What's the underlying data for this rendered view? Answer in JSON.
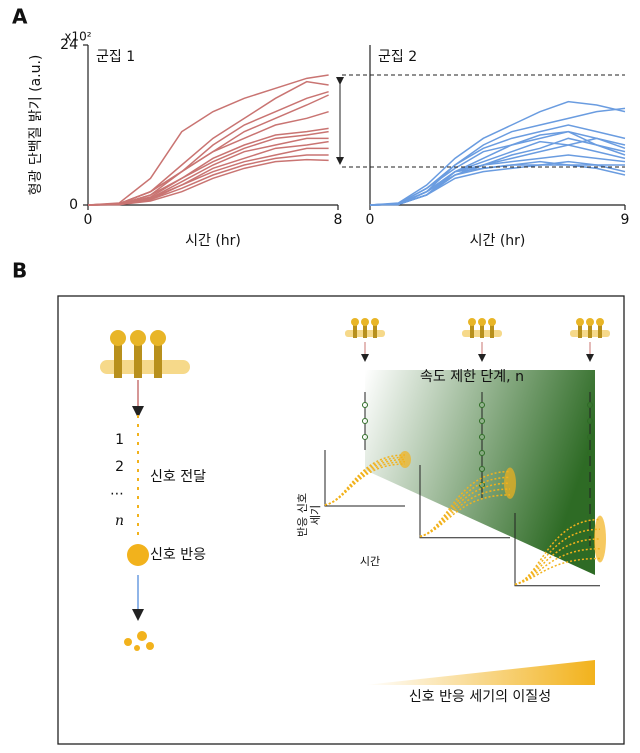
{
  "figure": {
    "panel_a_label": "A",
    "panel_b_label": "B"
  },
  "chart_data": [
    {
      "type": "line",
      "title": "군집 1",
      "x_label": "시간 (hr)",
      "y_label": "형광 단백질 밝기 (a.u.)",
      "y_unit": "x10²",
      "color": "#c97472",
      "xlim": [
        0,
        8
      ],
      "xticks": [
        0,
        8
      ],
      "ylim": [
        0,
        24
      ],
      "yticks": [
        0,
        24
      ],
      "x": [
        0,
        1,
        2,
        3,
        4,
        5,
        6,
        7,
        7.7
      ],
      "series": [
        {
          "values": [
            0,
            0.3,
            4,
            11,
            14,
            16,
            17.5,
            19,
            19.5
          ]
        },
        {
          "values": [
            0,
            0.2,
            2,
            6,
            10,
            13,
            16,
            18.5,
            18
          ]
        },
        {
          "values": [
            0,
            0.2,
            2,
            5,
            9,
            12,
            14,
            16,
            17
          ]
        },
        {
          "values": [
            0,
            0.1,
            1.5,
            5,
            8,
            11,
            13,
            15,
            16.5
          ]
        },
        {
          "values": [
            0,
            0.2,
            2,
            5,
            8,
            10,
            12,
            13,
            14
          ]
        },
        {
          "values": [
            0,
            0.1,
            1.5,
            4,
            7,
            9,
            10.5,
            11,
            11.5
          ]
        },
        {
          "values": [
            0,
            0.1,
            1.2,
            4,
            6.5,
            8.5,
            10,
            10.5,
            11
          ]
        },
        {
          "values": [
            0,
            0.1,
            1,
            3.5,
            6,
            8,
            9,
            10,
            10
          ]
        },
        {
          "values": [
            0,
            0.1,
            1,
            3,
            5.5,
            7,
            8.5,
            9,
            9.5
          ]
        },
        {
          "values": [
            0,
            0.1,
            0.8,
            3,
            5,
            6.5,
            7.5,
            8.5,
            8.5
          ]
        },
        {
          "values": [
            0,
            0.05,
            0.8,
            2.5,
            4.5,
            6,
            7,
            7.5,
            7.5
          ]
        },
        {
          "values": [
            0,
            0.05,
            0.6,
            2,
            4,
            5.5,
            6.5,
            6.8,
            6.7
          ]
        }
      ]
    },
    {
      "type": "line",
      "title": "군집 2",
      "x_label": "시간 (hr)",
      "color": "#6a9ce0",
      "xlim": [
        0,
        9
      ],
      "xticks": [
        0,
        9
      ],
      "ylim": [
        0,
        24
      ],
      "hlines": [
        19.5,
        5.7
      ],
      "x": [
        0,
        1,
        2,
        3,
        4,
        5,
        6,
        7,
        8,
        9
      ],
      "series": [
        {
          "values": [
            0,
            0.3,
            3,
            7,
            10,
            12,
            14,
            15.5,
            15,
            14
          ]
        },
        {
          "values": [
            0,
            0.2,
            2.5,
            6,
            9,
            11,
            12,
            13,
            14,
            14.5
          ]
        },
        {
          "values": [
            0,
            0.2,
            2,
            6,
            8.5,
            10,
            11,
            12,
            11,
            10
          ]
        },
        {
          "values": [
            0,
            0.2,
            2.5,
            5.5,
            8,
            9,
            10.5,
            11,
            10,
            9
          ]
        },
        {
          "values": [
            0,
            0.1,
            2,
            5,
            7,
            9,
            10,
            11,
            9,
            8
          ]
        },
        {
          "values": [
            0,
            0.1,
            2,
            5,
            6.5,
            8,
            9.5,
            9,
            10,
            8.5
          ]
        },
        {
          "values": [
            0,
            0.1,
            1.5,
            4.5,
            6,
            7.5,
            8.5,
            10,
            9,
            7.5
          ]
        },
        {
          "values": [
            0,
            0.1,
            1.5,
            4.5,
            6,
            7,
            8,
            9,
            8,
            7
          ]
        },
        {
          "values": [
            0,
            0.1,
            1.5,
            5,
            6,
            6.5,
            7,
            7.5,
            7,
            6.5
          ]
        },
        {
          "values": [
            0,
            0.1,
            1.5,
            5,
            5.5,
            6,
            6.5,
            6,
            6,
            6
          ]
        },
        {
          "values": [
            0,
            0.1,
            1.5,
            4,
            5,
            5.5,
            6,
            6.5,
            6,
            5
          ]
        },
        {
          "values": [
            0,
            0.1,
            2,
            4.5,
            5.5,
            6,
            6,
            6,
            5.5,
            4.5
          ]
        }
      ]
    }
  ],
  "diagram": {
    "pathway_steps": [
      "1",
      "2",
      "⋯",
      "n"
    ],
    "signal_transduction": "신호 전달",
    "signal_response": "신호 반응",
    "rate_limiting": "속도 제한 단계, n",
    "mini_y_label": [
      "반응 신호",
      "세기"
    ],
    "mini_x_label": "시간",
    "heterogeneity": "신호 반응 세기의 이질성"
  }
}
